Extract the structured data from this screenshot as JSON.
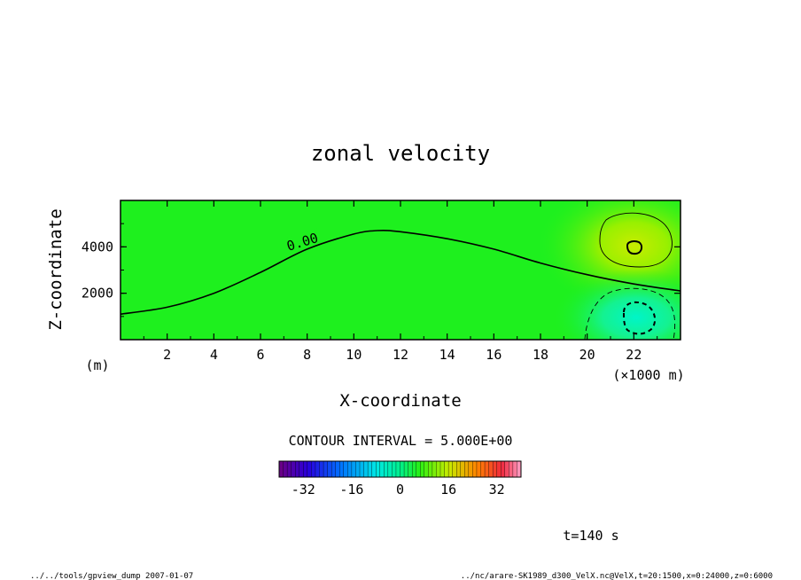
{
  "chart_data": {
    "type": "heatmap",
    "title": "zonal velocity",
    "xlabel": "X-coordinate",
    "ylabel": "Z-coordinate",
    "y_unit": "(m)",
    "x_unit": "(×1000 m)",
    "xlim": [
      0,
      24
    ],
    "ylim": [
      0,
      6000
    ],
    "x_ticks": [
      2,
      4,
      6,
      8,
      10,
      12,
      14,
      16,
      18,
      20,
      22
    ],
    "y_ticks": [
      2000,
      4000
    ],
    "x_tick_labels": [
      "2",
      "4",
      "6",
      "8",
      "10",
      "12",
      "14",
      "16",
      "18",
      "20",
      "22"
    ],
    "y_tick_labels": [
      "2000",
      "4000"
    ],
    "contour_label": "0.00",
    "contour_interval_text": "CONTOUR INTERVAL = 5.000E+00",
    "zero_contour": {
      "x": [
        0,
        2,
        4,
        6,
        8,
        10,
        11,
        12,
        14,
        16,
        18,
        20,
        22,
        24
      ],
      "z": [
        1100,
        1400,
        2000,
        2900,
        3900,
        4550,
        4700,
        4650,
        4350,
        3900,
        3300,
        2800,
        2400,
        2100
      ]
    },
    "features": [
      {
        "name": "positive maximum",
        "x": 22,
        "z": 3900
      },
      {
        "name": "negative minimum",
        "x": 22,
        "z": 1000
      }
    ],
    "colorbar": {
      "range": [
        -40,
        40
      ],
      "tick_values": [
        -32,
        -16,
        0,
        16,
        32
      ],
      "tick_labels": [
        "-32",
        "-16",
        "0",
        "16",
        "32"
      ]
    }
  },
  "footer": {
    "time": "t=140 s",
    "left_note": "../../tools/gpview_dump  2007-01-07",
    "right_note": "../nc/arare-SK1989_d300_VelX.nc@VelX,t=20:1500,x=0:24000,z=0:6000"
  },
  "colors": {
    "background_field": "#1ef01e",
    "positive": "#a0f000",
    "negative": "#00f2b4"
  }
}
